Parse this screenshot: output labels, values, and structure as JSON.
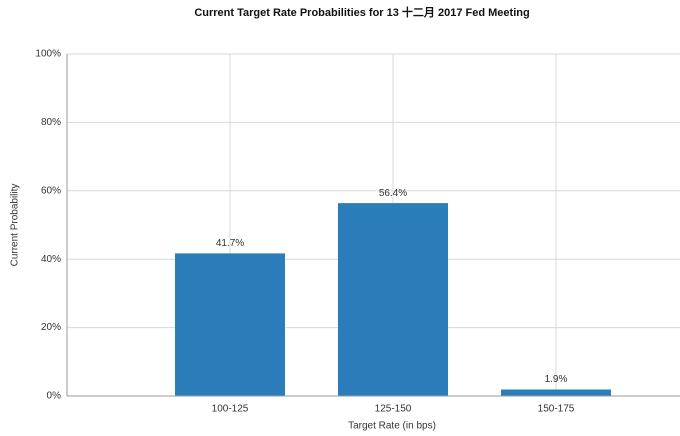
{
  "chart_data": {
    "type": "bar",
    "title": "Current Target Rate Probabilities for 13 十二月 2017  Fed Meeting",
    "x_label": "Target Rate (in bps)",
    "y_label": "Current Probability",
    "categories": [
      "100-125",
      "125-150",
      "150-175"
    ],
    "values": [
      41.7,
      56.4,
      1.9
    ],
    "value_labels": [
      "41.7%",
      "56.4%",
      "1.9%"
    ],
    "color": "#2a7db9",
    "ylim": [
      0,
      100
    ],
    "yticks": [
      {
        "value": 0,
        "label": "0%"
      },
      {
        "value": 20,
        "label": "20%"
      },
      {
        "value": 40,
        "label": "40%"
      },
      {
        "value": 60,
        "label": "60%"
      },
      {
        "value": 80,
        "label": "80%"
      },
      {
        "value": 100,
        "label": "100%"
      }
    ],
    "grid": true
  }
}
